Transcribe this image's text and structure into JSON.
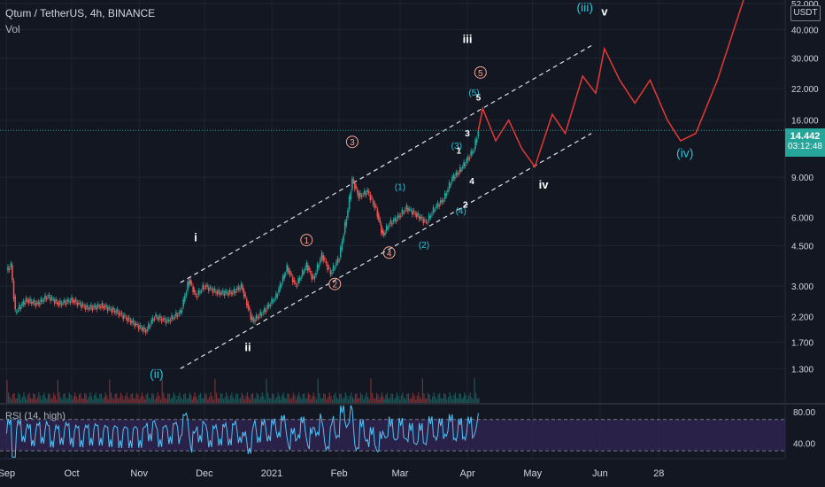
{
  "header": {
    "title": "Qtum / TetherUS, 4h, BINANCE",
    "volume_label": "Vol",
    "rsi_label": "RSI (14, high)",
    "currency_button": "USDT"
  },
  "last_price": {
    "value": "14.442",
    "countdown": "03:12:48"
  },
  "colors": {
    "background": "#131722",
    "up": "#26a69a",
    "down": "#ef5350",
    "projection": "#e53935",
    "channel": "#e0e3eb",
    "wave_cyan": "#26c6da",
    "wave_orange": "#f7a392",
    "rsi_line": "#4fc3f7",
    "rsi_band": "#3d2a66"
  },
  "chart_data": {
    "type": "line",
    "title": "Qtum / TetherUS, 4h, BINANCE",
    "y_scale": "log",
    "ylim": [
      1.1,
      52.0
    ],
    "y_ticks": [
      "52.000",
      "40.000",
      "30.000",
      "22.000",
      "16.000",
      "9.000",
      "6.000",
      "4.500",
      "3.000",
      "2.200",
      "1.700",
      "1.300"
    ],
    "x_ticks": [
      "Sep",
      "Oct",
      "Nov",
      "Dec",
      "2021",
      "Feb",
      "Mar",
      "Apr",
      "May",
      "Jun",
      "28"
    ],
    "price_path": [
      [
        "2020-09-01",
        3.5
      ],
      [
        "2020-09-03",
        3.7
      ],
      [
        "2020-09-05",
        2.3
      ],
      [
        "2020-09-10",
        2.6
      ],
      [
        "2020-09-15",
        2.5
      ],
      [
        "2020-09-20",
        2.7
      ],
      [
        "2020-09-25",
        2.5
      ],
      [
        "2020-10-01",
        2.6
      ],
      [
        "2020-10-08",
        2.4
      ],
      [
        "2020-10-15",
        2.45
      ],
      [
        "2020-10-22",
        2.3
      ],
      [
        "2020-10-28",
        2.1
      ],
      [
        "2020-11-04",
        1.9
      ],
      [
        "2020-11-08",
        2.2
      ],
      [
        "2020-11-14",
        2.1
      ],
      [
        "2020-11-20",
        2.3
      ],
      [
        "2020-11-24",
        3.2
      ],
      [
        "2020-11-27",
        2.7
      ],
      [
        "2020-12-01",
        3.0
      ],
      [
        "2020-12-07",
        2.8
      ],
      [
        "2020-12-14",
        2.8
      ],
      [
        "2020-12-18",
        3.0
      ],
      [
        "2020-12-23",
        2.1
      ],
      [
        "2020-12-28",
        2.3
      ],
      [
        "2021-01-03",
        2.7
      ],
      [
        "2021-01-08",
        3.6
      ],
      [
        "2021-01-12",
        3.0
      ],
      [
        "2021-01-17",
        3.7
      ],
      [
        "2021-01-20",
        3.2
      ],
      [
        "2021-01-24",
        4.1
      ],
      [
        "2021-01-28",
        3.4
      ],
      [
        "2021-02-01",
        4.0
      ],
      [
        "2021-02-05",
        6.5
      ],
      [
        "2021-02-07",
        8.8
      ],
      [
        "2021-02-10",
        7.4
      ],
      [
        "2021-02-14",
        7.8
      ],
      [
        "2021-02-18",
        6.5
      ],
      [
        "2021-02-21",
        5.0
      ],
      [
        "2021-02-24",
        5.6
      ],
      [
        "2021-02-28",
        6.0
      ],
      [
        "2021-03-04",
        6.6
      ],
      [
        "2021-03-08",
        6.2
      ],
      [
        "2021-03-13",
        5.7
      ],
      [
        "2021-03-17",
        6.6
      ],
      [
        "2021-03-21",
        7.2
      ],
      [
        "2021-03-25",
        8.9
      ],
      [
        "2021-03-28",
        9.5
      ],
      [
        "2021-03-31",
        10.4
      ],
      [
        "2021-04-04",
        12.0
      ],
      [
        "2021-04-06",
        14.44
      ]
    ],
    "projection_path": [
      [
        "2021-04-06",
        14.44
      ],
      [
        "2021-04-08",
        18.0
      ],
      [
        "2021-04-14",
        13.0
      ],
      [
        "2021-04-20",
        16.0
      ],
      [
        "2021-04-26",
        12.0
      ],
      [
        "2021-05-02",
        10.0
      ],
      [
        "2021-05-10",
        17.0
      ],
      [
        "2021-05-16",
        14.0
      ],
      [
        "2021-05-24",
        25.0
      ],
      [
        "2021-05-30",
        21.0
      ],
      [
        "2021-06-03",
        33.0
      ],
      [
        "2021-06-10",
        24.0
      ],
      [
        "2021-06-17",
        19.0
      ],
      [
        "2021-06-24",
        24.0
      ],
      [
        "2021-07-02",
        16.0
      ],
      [
        "2021-07-08",
        13.0
      ],
      [
        "2021-07-15",
        14.0
      ],
      [
        "2021-07-25",
        24.0
      ],
      [
        "2021-08-06",
        54.0
      ]
    ],
    "channel_upper": [
      [
        "2020-11-20",
        3.1
      ],
      [
        "2021-05-28",
        34.0
      ]
    ],
    "channel_lower": [
      [
        "2020-11-20",
        1.3
      ],
      [
        "2021-05-28",
        14.0
      ]
    ],
    "wave_labels": [
      {
        "text": "i",
        "date": "2020-11-27",
        "price": 4.7,
        "style": "white"
      },
      {
        "text": "ii",
        "date": "2020-12-21",
        "price": 1.55,
        "style": "white"
      },
      {
        "text": "iii",
        "date": "2021-04-01",
        "price": 35.0,
        "style": "white"
      },
      {
        "text": "iv",
        "date": "2021-05-06",
        "price": 8.0,
        "style": "white"
      },
      {
        "text": "v",
        "date": "2021-06-03",
        "price": 46.0,
        "style": "white"
      },
      {
        "text": "(ii)",
        "date": "2020-11-09",
        "price": 1.18,
        "style": "cyan"
      },
      {
        "text": "(iii)",
        "date": "2021-05-25",
        "price": 48.0,
        "style": "cyan"
      },
      {
        "text": "(iv)",
        "date": "2021-07-10",
        "price": 11.0,
        "style": "cyan"
      },
      {
        "text": "1",
        "date": "2021-01-17",
        "price": 4.6,
        "style": "orange-circle"
      },
      {
        "text": "2",
        "date": "2021-01-30",
        "price": 2.95,
        "style": "orange-circle"
      },
      {
        "text": "3",
        "date": "2021-02-07",
        "price": 12.4,
        "style": "orange-circle"
      },
      {
        "text": "4",
        "date": "2021-02-24",
        "price": 4.05,
        "style": "orange-circle"
      },
      {
        "text": "5",
        "date": "2021-04-07",
        "price": 25.0,
        "style": "orange-circle"
      },
      {
        "text": "(1)",
        "date": "2021-03-01",
        "price": 7.9,
        "style": "cyan-small"
      },
      {
        "text": "(2)",
        "date": "2021-03-12",
        "price": 4.4,
        "style": "cyan-small"
      },
      {
        "text": "(3)",
        "date": "2021-03-27",
        "price": 12.0,
        "style": "cyan-small"
      },
      {
        "text": "(4)",
        "date": "2021-03-29",
        "price": 6.2,
        "style": "cyan-small"
      },
      {
        "text": "(5)",
        "date": "2021-04-04",
        "price": 20.5,
        "style": "cyan-small"
      },
      {
        "text": "1",
        "date": "2021-03-28",
        "price": 11.4,
        "style": "white-small"
      },
      {
        "text": "2",
        "date": "2021-03-31",
        "price": 6.6,
        "style": "white-small"
      },
      {
        "text": "3",
        "date": "2021-04-01",
        "price": 13.6,
        "style": "white-small"
      },
      {
        "text": "4",
        "date": "2021-04-03",
        "price": 8.4,
        "style": "white-small"
      },
      {
        "text": "5",
        "date": "2021-04-06",
        "price": 19.5,
        "style": "white-small"
      }
    ],
    "rsi": {
      "ylim": [
        20,
        90
      ],
      "y_ticks": [
        "80.00",
        "40.00"
      ],
      "upper_band": 70,
      "lower_band": 30,
      "last": 78
    }
  }
}
